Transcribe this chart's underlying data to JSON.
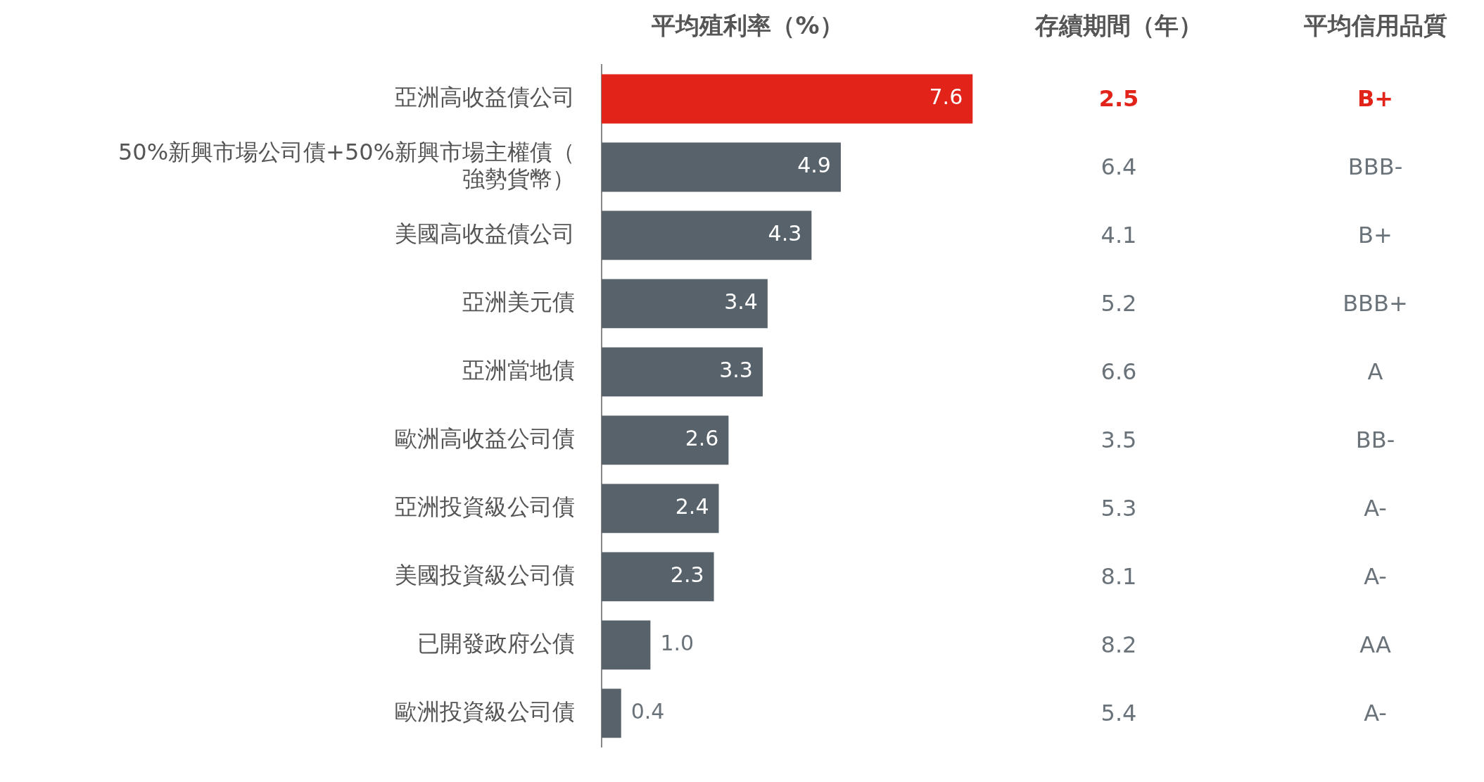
{
  "chart_data": [
    {
      "type": "bar",
      "orientation": "horizontal",
      "title": "平均殖利率（%）",
      "categories": [
        "亞洲高收益債公司",
        "50%新興市場公司債+50%新興市場主權債（強勢貨幣）",
        "美國高收益債公司",
        "亞洲美元債",
        "亞洲當地債",
        "歐洲高收益公司債",
        "亞洲投資級公司債",
        "美國投資級公司債",
        "已開發政府公債",
        "歐洲投資級公司債"
      ],
      "values": [
        7.6,
        4.9,
        4.3,
        3.4,
        3.3,
        2.6,
        2.4,
        2.3,
        1.0,
        0.4
      ],
      "colors": [
        "#e2231a",
        "#58626b",
        "#58626b",
        "#58626b",
        "#58626b",
        "#58626b",
        "#58626b",
        "#58626b",
        "#58626b",
        "#58626b"
      ],
      "value_labels": [
        "7.6",
        "4.9",
        "4.3",
        "3.4",
        "3.3",
        "2.6",
        "2.4",
        "2.3",
        "1.0",
        "0.4"
      ],
      "tick_labels": "y",
      "grid": false,
      "legend": false
    },
    {
      "type": "other",
      "title": "存續期間（年）",
      "annotations": [
        "2.5",
        "6.4",
        "4.1",
        "5.2",
        "6.6",
        "3.5",
        "5.3",
        "8.1",
        "8.2",
        "5.4"
      ],
      "colors": [
        "#e2231a",
        "#6b737a",
        "#6b737a",
        "#6b737a",
        "#6b737a",
        "#6b737a",
        "#6b737a",
        "#6b737a",
        "#6b737a",
        "#6b737a"
      ]
    },
    {
      "type": "other",
      "title": "平均信用品質",
      "annotations": [
        "B+",
        "BBB-",
        "B+",
        "BBB+",
        "A",
        "BB-",
        "A-",
        "A-",
        "AA",
        "A-"
      ],
      "colors": [
        "#e2231a",
        "#6b737a",
        "#6b737a",
        "#6b737a",
        "#6b737a",
        "#6b737a",
        "#6b737a",
        "#6b737a",
        "#6b737a",
        "#6b737a"
      ]
    }
  ]
}
